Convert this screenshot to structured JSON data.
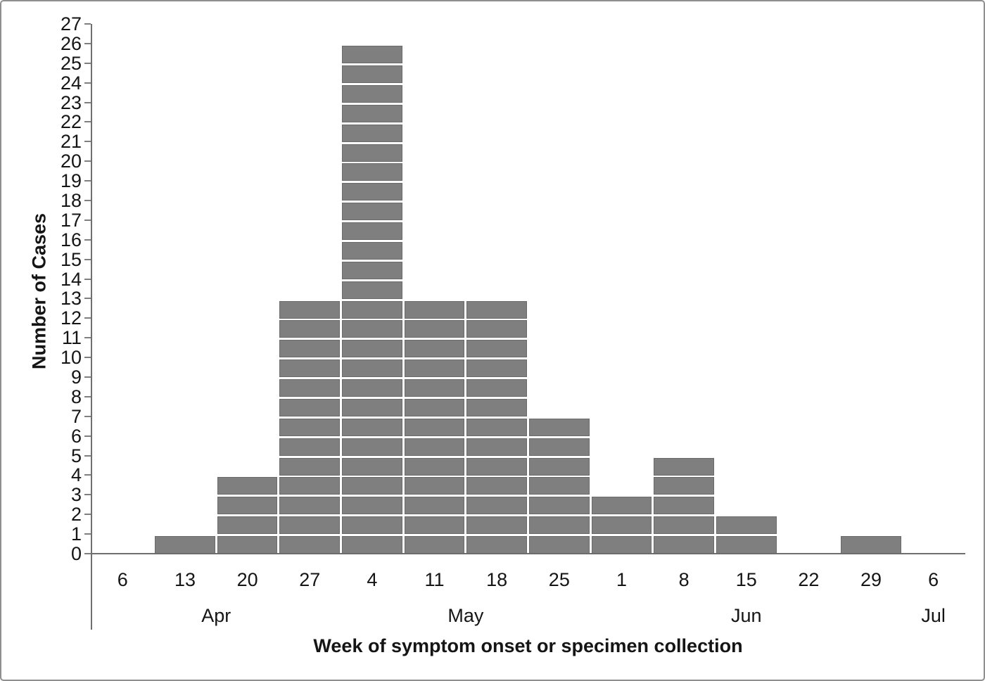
{
  "chart_data": {
    "type": "bar",
    "title": "",
    "xlabel": "Week of symptom onset or specimen collection",
    "ylabel": "Number of Cases",
    "ylim": [
      0,
      27
    ],
    "y_tick_step": 1,
    "grid": false,
    "legend": "none",
    "stacked_unit_blocks": true,
    "categories": [
      "6",
      "13",
      "20",
      "27",
      "4",
      "11",
      "18",
      "25",
      "1",
      "8",
      "15",
      "22",
      "29",
      "6"
    ],
    "values": [
      0,
      1,
      4,
      13,
      26,
      13,
      13,
      7,
      3,
      5,
      2,
      0,
      1,
      0
    ],
    "month_groups": [
      {
        "label": "Apr",
        "span": 4
      },
      {
        "label": "May",
        "span": 4
      },
      {
        "label": "Jun",
        "span": 5
      },
      {
        "label": "Jul",
        "span": 1
      }
    ],
    "total_cases": 88,
    "colors": {
      "bar_fill": "#7f7f7f",
      "bar_border": "#6a6a6a",
      "axis_line": "#6f6f6f",
      "tick_line": "#7f7f7f",
      "text": "#151515",
      "frame_border": "#8f8f8f",
      "background": "#ffffff"
    }
  }
}
